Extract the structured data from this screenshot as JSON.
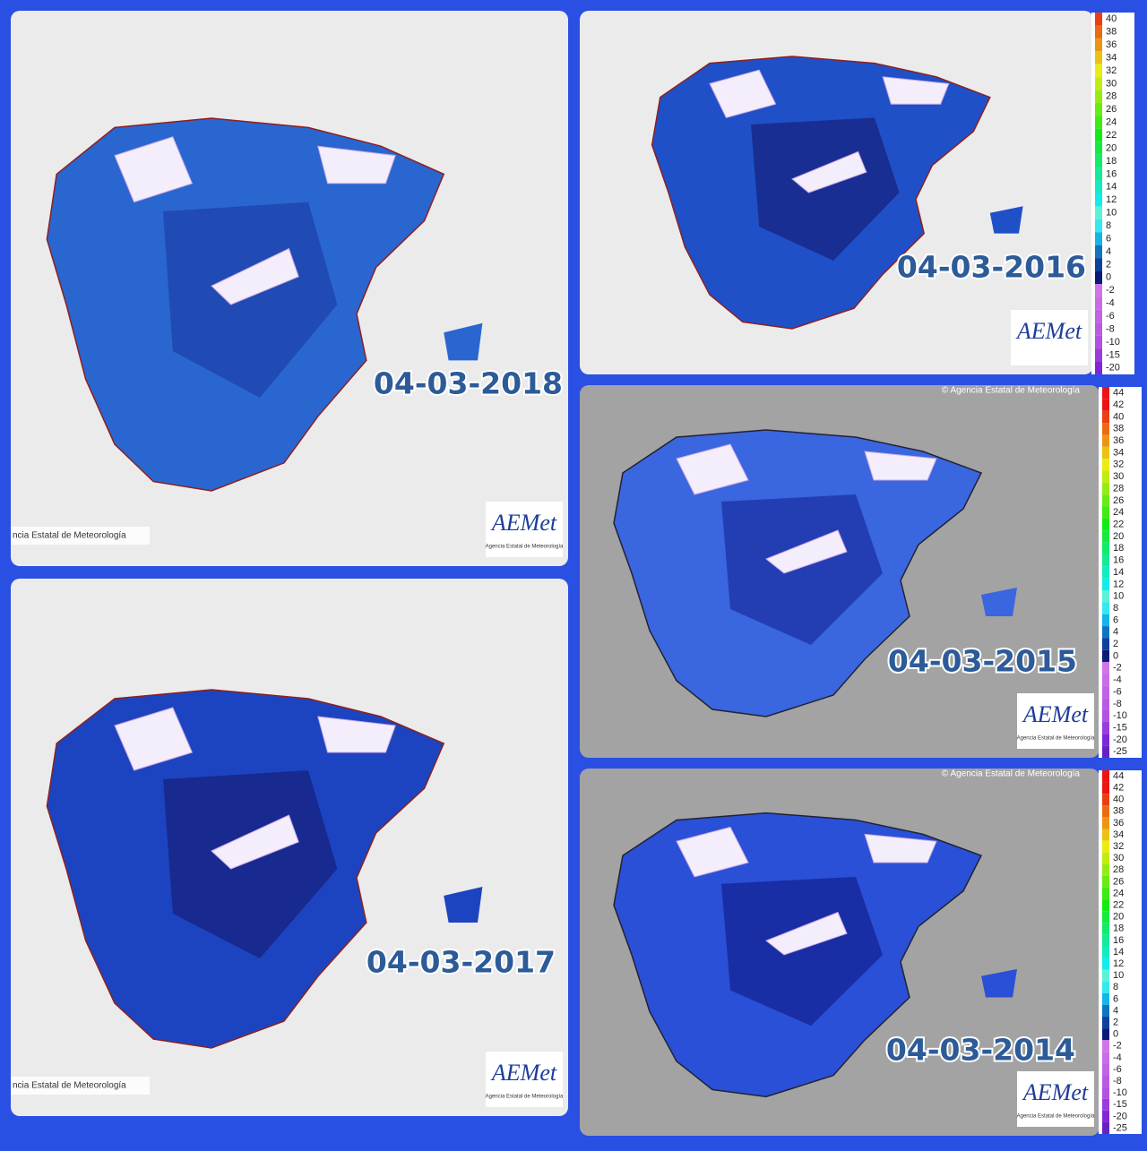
{
  "panels": [
    {
      "date": "04-03-2018",
      "credit": "ncia Estatal de Meteorología",
      "logo": "AEMet",
      "logo_sub": "Agencia Estatal de Meteorología"
    },
    {
      "date": "04-03-2016",
      "logo": "AEMet",
      "legend": [
        40,
        38,
        36,
        34,
        32,
        30,
        28,
        26,
        24,
        22,
        20,
        18,
        16,
        14,
        12,
        10,
        8,
        6,
        4,
        2,
        0,
        -2,
        -4,
        -6,
        -8,
        -10,
        -15,
        -20
      ]
    },
    {
      "date": "04-03-2015",
      "copyright": "© Agencia Estatal de Meteorología",
      "logo": "AEMet",
      "logo_sub": "Agencia Estatal de Meteorología",
      "legend": [
        44,
        42,
        40,
        38,
        36,
        34,
        32,
        30,
        28,
        26,
        24,
        22,
        20,
        18,
        16,
        14,
        12,
        10,
        8,
        6,
        4,
        2,
        0,
        -2,
        -4,
        -6,
        -8,
        -10,
        -15,
        -20,
        -25
      ]
    },
    {
      "date": "04-03-2017",
      "credit": "ncia Estatal de Meteorología",
      "logo": "AEMet",
      "logo_sub": "Agencia Estatal de Meteorología"
    },
    {
      "date": "04-03-2014",
      "copyright": "© Agencia Estatal de Meteorología",
      "logo": "AEMet",
      "logo_sub": "Agencia Estatal de Meteorología",
      "legend": [
        44,
        42,
        40,
        38,
        36,
        34,
        32,
        30,
        28,
        26,
        24,
        22,
        20,
        18,
        16,
        14,
        12,
        10,
        8,
        6,
        4,
        2,
        0,
        -2,
        -4,
        -6,
        -8,
        -10,
        -15,
        -20,
        -25
      ]
    }
  ]
}
